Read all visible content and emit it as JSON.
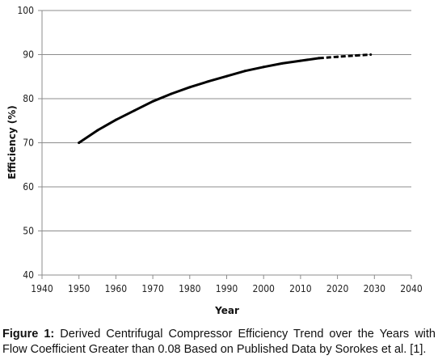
{
  "chart_data": {
    "type": "line",
    "title": "",
    "xlabel": "Year",
    "ylabel": "Efficiency (%)",
    "xlim": [
      1940,
      2040
    ],
    "ylim": [
      40,
      100
    ],
    "xticks": [
      1940,
      1950,
      1960,
      1970,
      1980,
      1990,
      2000,
      2010,
      2020,
      2030,
      2040
    ],
    "yticks": [
      40,
      50,
      60,
      70,
      80,
      90,
      100
    ],
    "grid": "horizontal",
    "legend": "none",
    "series": [
      {
        "style": "solid",
        "color": "#000000",
        "x": [
          1950,
          1955,
          1960,
          1965,
          1970,
          1975,
          1980,
          1985,
          1990,
          1995,
          2000,
          2005,
          2010,
          2015
        ],
        "y": [
          70.0,
          72.8,
          75.2,
          77.3,
          79.4,
          81.1,
          82.6,
          83.9,
          85.1,
          86.3,
          87.2,
          88.0,
          88.6,
          89.2
        ]
      },
      {
        "style": "dashed",
        "color": "#000000",
        "x": [
          2015,
          2020,
          2025,
          2029
        ],
        "y": [
          89.2,
          89.5,
          89.8,
          90.0
        ]
      }
    ]
  },
  "caption": {
    "label": "Figure 1:",
    "text": " Derived Centrifugal Compressor Efficiency Trend over the Years with Flow Coefficient Greater than 0.08 Based on Published Data by Sorokes et al. [1]."
  }
}
